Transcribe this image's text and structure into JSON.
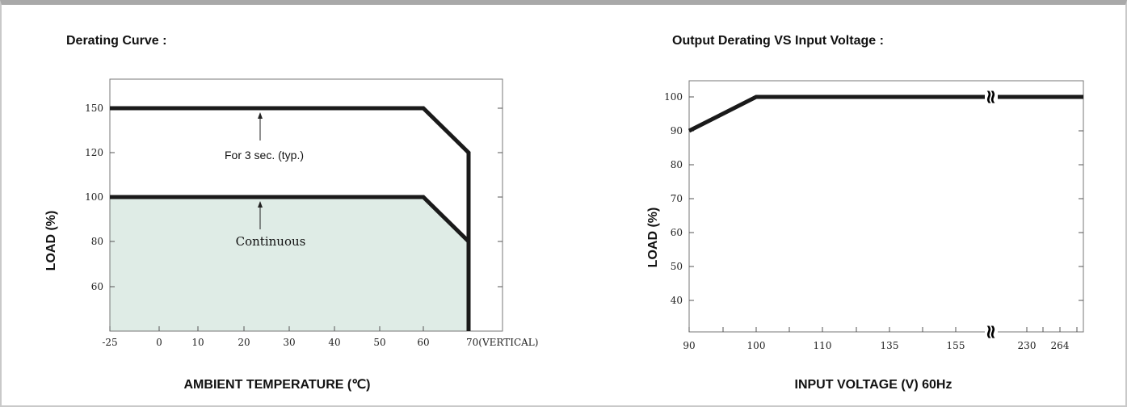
{
  "chart_data": [
    {
      "type": "line",
      "title": "Derating Curve :",
      "xlabel": "AMBIENT TEMPERATURE (℃)",
      "ylabel": "LOAD (%)",
      "x_ticks": [
        "-25",
        "0",
        "10",
        "20",
        "30",
        "40",
        "50",
        "60",
        "70(VERTICAL)"
      ],
      "y_ticks": [
        "150",
        "120",
        "100",
        "80",
        "60"
      ],
      "xlim": [
        -25,
        70
      ],
      "series": [
        {
          "name": "For 3 sec. (typ.)",
          "x": [
            -25,
            60,
            70,
            70
          ],
          "y": [
            150,
            150,
            120,
            40
          ]
        },
        {
          "name": "Continuous",
          "x": [
            -25,
            60,
            70
          ],
          "y": [
            100,
            100,
            80
          ]
        }
      ],
      "annotations": [
        "For 3 sec. (typ.)",
        "Continuous"
      ],
      "fill_color": "#dfece6",
      "line_color": "#1a1a1a"
    },
    {
      "type": "line",
      "title": "Output Derating VS Input Voltage :",
      "xlabel": "INPUT VOLTAGE (V) 60Hz",
      "ylabel": "LOAD (%)",
      "x_ticks": [
        "90",
        "100",
        "110",
        "135",
        "155",
        "230",
        "264"
      ],
      "y_ticks": [
        "100",
        "90",
        "80",
        "70",
        "60",
        "50",
        "40"
      ],
      "axis_break_symbol": "≈",
      "series": [
        {
          "x": [
            90,
            100,
            264
          ],
          "y": [
            90,
            100,
            100
          ]
        }
      ],
      "line_color": "#1a1a1a"
    }
  ]
}
